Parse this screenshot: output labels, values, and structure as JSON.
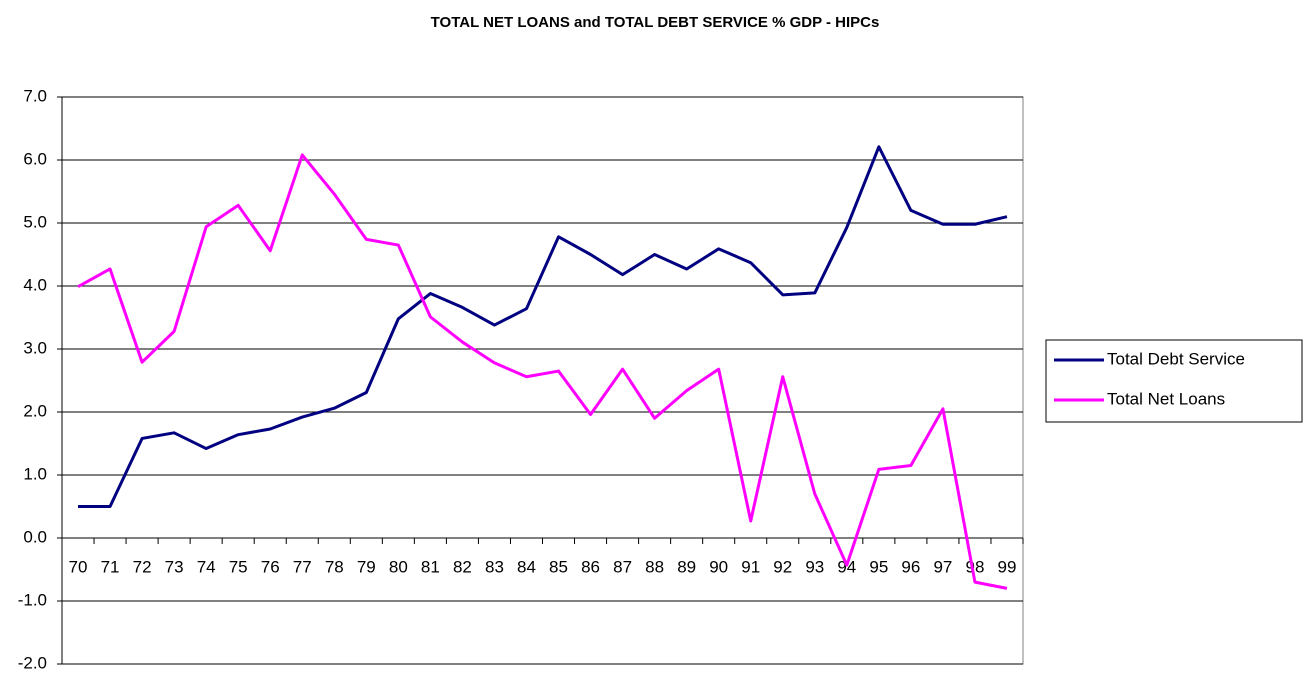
{
  "chart_data": {
    "type": "line",
    "title": "TOTAL NET LOANS and TOTAL DEBT SERVICE % GDP -  HIPCs",
    "categories": [
      "70",
      "71",
      "72",
      "73",
      "74",
      "75",
      "76",
      "77",
      "78",
      "79",
      "80",
      "81",
      "82",
      "83",
      "84",
      "85",
      "86",
      "87",
      "88",
      "89",
      "90",
      "91",
      "92",
      "93",
      "94",
      "95",
      "96",
      "97",
      "98",
      "99"
    ],
    "series": [
      {
        "name": "Total Debt Service",
        "color": "#000080",
        "values": [
          0.5,
          0.5,
          1.58,
          1.67,
          1.42,
          1.64,
          1.73,
          1.92,
          2.06,
          2.31,
          3.48,
          3.88,
          3.66,
          3.38,
          3.64,
          4.78,
          4.5,
          4.18,
          4.5,
          4.27,
          4.59,
          4.37,
          3.86,
          3.89,
          4.93,
          6.21,
          5.2,
          4.98,
          4.98,
          5.1
        ]
      },
      {
        "name": "Total Net Loans",
        "color": "#ff00ff",
        "values": [
          3.99,
          4.27,
          2.79,
          3.28,
          4.94,
          5.28,
          4.56,
          6.08,
          5.46,
          4.74,
          4.65,
          3.51,
          3.11,
          2.78,
          2.56,
          2.65,
          1.96,
          2.68,
          1.9,
          2.34,
          2.68,
          0.27,
          2.56,
          0.7,
          -0.43,
          1.09,
          1.15,
          2.05,
          -0.7,
          -0.8
        ]
      }
    ],
    "ylim": [
      -2,
      7
    ],
    "yticks": [
      {
        "value": -2,
        "label": "-2.0"
      },
      {
        "value": -1,
        "label": "-1.0"
      },
      {
        "value": 0,
        "label": "0.0"
      },
      {
        "value": 1,
        "label": "1.0"
      },
      {
        "value": 2,
        "label": "2.0"
      },
      {
        "value": 3,
        "label": "3.0"
      },
      {
        "value": 4,
        "label": "4.0"
      },
      {
        "value": 5,
        "label": "5.0"
      },
      {
        "value": 6,
        "label": "6.0"
      },
      {
        "value": 7,
        "label": "7.0"
      }
    ],
    "grid": true,
    "legend": "right"
  }
}
